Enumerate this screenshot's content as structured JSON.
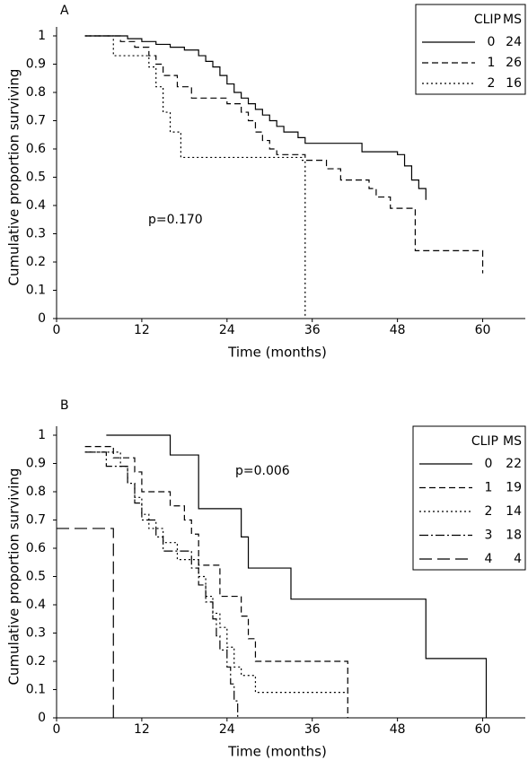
{
  "chart_data": [
    {
      "type": "line",
      "step": true,
      "panel": "A",
      "x_label": "Time (months)",
      "y_label": "Cumulative proportion surviving",
      "annotation": "p=0.170",
      "legend_columns": [
        "CLIP",
        "MS"
      ],
      "legend_position": "upper right",
      "xlim": [
        0,
        66
      ],
      "ylim": [
        0,
        1
      ],
      "xticks": [
        0,
        12,
        24,
        36,
        48,
        60
      ],
      "yticks": [
        0,
        0.1,
        0.2,
        0.3,
        0.4,
        0.5,
        0.6,
        0.7,
        0.8,
        0.9,
        1
      ],
      "series": [
        {
          "name": "0",
          "ms": 24,
          "color": "#000000",
          "dash": "solid",
          "x": [
            4,
            10,
            12,
            14,
            16,
            18,
            20,
            21,
            22,
            23,
            24,
            25,
            26,
            27,
            28,
            29,
            30,
            31,
            32,
            34,
            35,
            40,
            43,
            48,
            49,
            50,
            51,
            52
          ],
          "values": [
            1,
            0.99,
            0.98,
            0.97,
            0.96,
            0.95,
            0.93,
            0.91,
            0.89,
            0.86,
            0.83,
            0.8,
            0.78,
            0.76,
            0.74,
            0.72,
            0.7,
            0.68,
            0.66,
            0.64,
            0.62,
            0.62,
            0.59,
            0.58,
            0.54,
            0.49,
            0.46,
            0.42
          ]
        },
        {
          "name": "1",
          "ms": 26,
          "color": "#000000",
          "dash": "dashed",
          "x": [
            4,
            8,
            9,
            11,
            13,
            14,
            15,
            17,
            19,
            23,
            24,
            26,
            27,
            28,
            29,
            30,
            31,
            35,
            38,
            40,
            44,
            45,
            47,
            50,
            50.5,
            60,
            60
          ],
          "values": [
            1,
            1,
            0.98,
            0.96,
            0.93,
            0.9,
            0.86,
            0.82,
            0.78,
            0.78,
            0.76,
            0.73,
            0.7,
            0.66,
            0.63,
            0.6,
            0.58,
            0.56,
            0.53,
            0.49,
            0.46,
            0.43,
            0.39,
            0.39,
            0.24,
            0.24,
            0.16
          ]
        },
        {
          "name": "2",
          "ms": 16,
          "color": "#000000",
          "dash": "dotted",
          "x": [
            4,
            8,
            8,
            12,
            13,
            14,
            15,
            16,
            17,
            17.5,
            34,
            34.5,
            35
          ],
          "values": [
            1,
            1,
            0.93,
            0.93,
            0.89,
            0.82,
            0.73,
            0.66,
            0.66,
            0.57,
            0.57,
            0.56,
            0
          ]
        }
      ]
    },
    {
      "type": "line",
      "step": true,
      "panel": "B",
      "x_label": "Time (months)",
      "y_label": "Cumulative proportion surviving",
      "annotation": "p=0.006",
      "legend_columns": [
        "CLIP",
        "MS"
      ],
      "legend_position": "upper right",
      "xlim": [
        0,
        66
      ],
      "ylim": [
        0,
        1
      ],
      "xticks": [
        0,
        12,
        24,
        36,
        48,
        60
      ],
      "yticks": [
        0,
        0.1,
        0.2,
        0.3,
        0.4,
        0.5,
        0.6,
        0.7,
        0.8,
        0.9,
        1
      ],
      "series": [
        {
          "name": "0",
          "ms": 22,
          "color": "#000000",
          "dash": "solid",
          "x": [
            7,
            15,
            16,
            19,
            20,
            24,
            26,
            27,
            32,
            33,
            51,
            52,
            60.5,
            60.5
          ],
          "values": [
            1,
            1,
            0.93,
            0.93,
            0.74,
            0.74,
            0.64,
            0.53,
            0.53,
            0.42,
            0.42,
            0.21,
            0.21,
            0
          ]
        },
        {
          "name": "1",
          "ms": 19,
          "color": "#000000",
          "dash": "dashed",
          "x": [
            4,
            7,
            8,
            10,
            11,
            12,
            15,
            16,
            18,
            19,
            20,
            22,
            23,
            25,
            26,
            27,
            28,
            41,
            41
          ],
          "values": [
            0.96,
            0.96,
            0.92,
            0.92,
            0.87,
            0.8,
            0.8,
            0.75,
            0.7,
            0.65,
            0.54,
            0.54,
            0.43,
            0.43,
            0.36,
            0.28,
            0.2,
            0.2,
            0
          ]
        },
        {
          "name": "2",
          "ms": 14,
          "color": "#000000",
          "dash": "dotted",
          "x": [
            4,
            8,
            9,
            10,
            11,
            12,
            13,
            15,
            17,
            20,
            21,
            22,
            23,
            24,
            25,
            26,
            28,
            41
          ],
          "values": [
            0.94,
            0.94,
            0.89,
            0.83,
            0.78,
            0.72,
            0.67,
            0.62,
            0.56,
            0.5,
            0.43,
            0.37,
            0.32,
            0.25,
            0.18,
            0.15,
            0.09,
            0.09
          ]
        },
        {
          "name": "3",
          "ms": 18,
          "color": "#000000",
          "dash": "dashdot",
          "x": [
            4,
            7,
            7,
            9,
            10,
            11,
            12,
            14,
            15,
            18,
            19,
            20,
            21,
            22,
            22.5,
            23,
            24,
            24.5,
            25,
            25.5
          ],
          "values": [
            0.94,
            0.94,
            0.89,
            0.89,
            0.83,
            0.76,
            0.7,
            0.64,
            0.59,
            0.59,
            0.53,
            0.47,
            0.41,
            0.35,
            0.29,
            0.24,
            0.18,
            0.12,
            0.06,
            0
          ]
        },
        {
          "name": "4",
          "ms": 4,
          "color": "#000000",
          "dash": "longdash",
          "x": [
            0,
            8,
            8
          ],
          "values": [
            0.67,
            0.67,
            0
          ]
        }
      ]
    }
  ]
}
